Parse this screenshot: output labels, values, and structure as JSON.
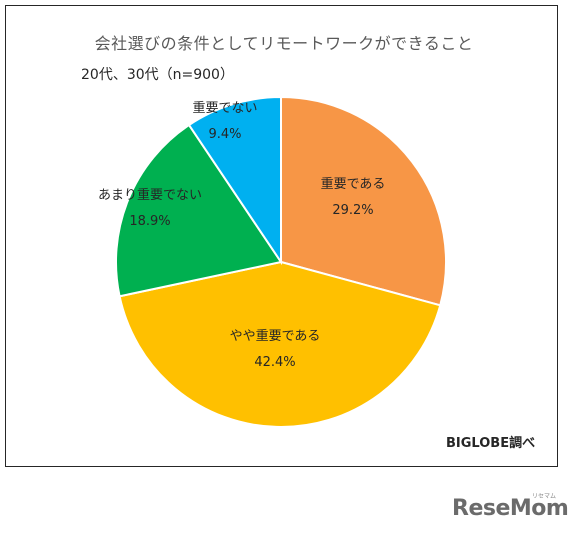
{
  "chart_data": {
    "type": "pie",
    "title": "会社選びの条件としてリモートワークができること",
    "subtitle": "20代、30代（n=900）",
    "slices": [
      {
        "label": "重要である",
        "value": 29.2,
        "value_label": "29.2%",
        "color": "#F79646"
      },
      {
        "label": "やや重要である",
        "value": 42.4,
        "value_label": "42.4%",
        "color": "#FFC000"
      },
      {
        "label": "あまり重要でない",
        "value": 18.9,
        "value_label": "18.9%",
        "color": "#00B050"
      },
      {
        "label": "重要でない",
        "value": 9.4,
        "value_label": "9.4%",
        "color": "#00B0F0"
      }
    ],
    "start": "12 o'clock",
    "direction": "clockwise"
  },
  "source": "BIGLOBE調べ",
  "watermark": {
    "logo": "ReseMom",
    "kana": "リセマム"
  }
}
